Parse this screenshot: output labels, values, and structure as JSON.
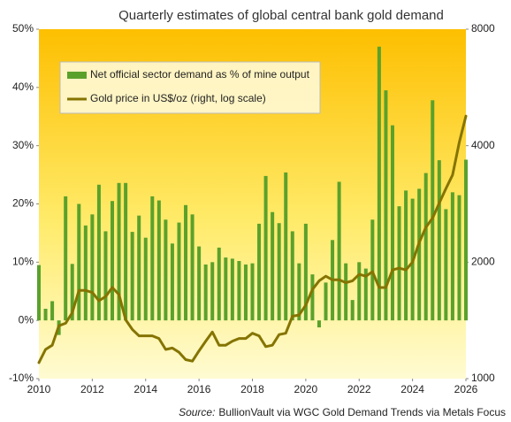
{
  "chart_data": {
    "type": "bar",
    "title": "Quarterly  estimates of global central bank gold demand",
    "source_label": "Source:",
    "source": "BullionVault via  WGC Gold Demand Trends via Metals Focus",
    "legend": "top-left",
    "grid": false,
    "xlim": [
      2010,
      2026
    ],
    "xticks": [
      2010,
      2012,
      2014,
      2016,
      2018,
      2020,
      2022,
      2024,
      2026
    ],
    "ylim": [
      -10,
      50
    ],
    "yticks": [
      {
        "value": -10,
        "label": "-10%"
      },
      {
        "value": 0,
        "label": "0%"
      },
      {
        "value": 10,
        "label": "10%"
      },
      {
        "value": 20,
        "label": "20%"
      },
      {
        "value": 30,
        "label": "30%"
      },
      {
        "value": 40,
        "label": "40%"
      },
      {
        "value": 50,
        "label": "50%"
      }
    ],
    "y2lim": [
      1000,
      8000
    ],
    "y2ticks": [
      1000,
      2000,
      4000,
      8000
    ],
    "y2log": true,
    "x": [
      2010,
      2010.25,
      2010.5,
      2010.75,
      2011,
      2011.25,
      2011.5,
      2011.75,
      2012,
      2012.25,
      2012.5,
      2012.75,
      2013,
      2013.25,
      2013.5,
      2013.75,
      2014,
      2014.25,
      2014.5,
      2014.75,
      2015,
      2015.25,
      2015.5,
      2015.75,
      2016,
      2016.25,
      2016.5,
      2016.75,
      2017,
      2017.25,
      2017.5,
      2017.75,
      2018,
      2018.25,
      2018.5,
      2018.75,
      2019,
      2019.25,
      2019.5,
      2019.75,
      2020,
      2020.25,
      2020.5,
      2020.75,
      2021,
      2021.25,
      2021.5,
      2021.75,
      2022,
      2022.25,
      2022.5,
      2022.75,
      2023,
      2023.25,
      2023.5,
      2023.75,
      2024,
      2024.25,
      2024.5,
      2024.75,
      2025,
      2025.25,
      2025.5,
      2025.75,
      2026
    ],
    "series": [
      {
        "name": "Net official sector demand as % of mine output",
        "type": "bar",
        "color": "#5aa12c",
        "values": [
          9.5,
          2,
          3.3,
          -2.5,
          21.3,
          9.7,
          20,
          16.3,
          18.2,
          23.3,
          15.3,
          20.5,
          23.6,
          23.6,
          15.2,
          18,
          14.2,
          21.3,
          20.6,
          17.3,
          13.2,
          16.8,
          19.8,
          18.2,
          12.7,
          9.6,
          10,
          12.5,
          10.8,
          10.6,
          10.2,
          9.6,
          9.8,
          16.6,
          24.8,
          18.6,
          16.7,
          25.4,
          15.3,
          9.8,
          16.6,
          7.9,
          -1.2,
          6.5,
          13.8,
          23.8,
          9.8,
          3.5,
          10,
          8.9,
          17.3,
          47,
          39.5,
          33.5,
          19.6,
          22.3,
          20.9,
          22.6,
          25.3,
          37.8,
          27.5,
          19.1,
          22,
          21.5,
          27.6
        ]
      },
      {
        "name": "Gold price in US$/oz (right, log scale)",
        "type": "line",
        "axis": "y2",
        "color": "#857400",
        "values": [
          1100,
          1190,
          1220,
          1370,
          1390,
          1480,
          1690,
          1690,
          1670,
          1590,
          1630,
          1720,
          1650,
          1420,
          1340,
          1290,
          1290,
          1290,
          1270,
          1190,
          1200,
          1170,
          1120,
          1110,
          1180,
          1250,
          1320,
          1220,
          1220,
          1250,
          1270,
          1270,
          1310,
          1290,
          1210,
          1220,
          1300,
          1310,
          1450,
          1460,
          1550,
          1700,
          1790,
          1840,
          1800,
          1800,
          1770,
          1790,
          1860,
          1840,
          1890,
          1720,
          1720,
          1910,
          1930,
          1910,
          2000,
          2250,
          2460,
          2600,
          2840,
          3100,
          3360,
          4080,
          4770
        ]
      }
    ]
  }
}
